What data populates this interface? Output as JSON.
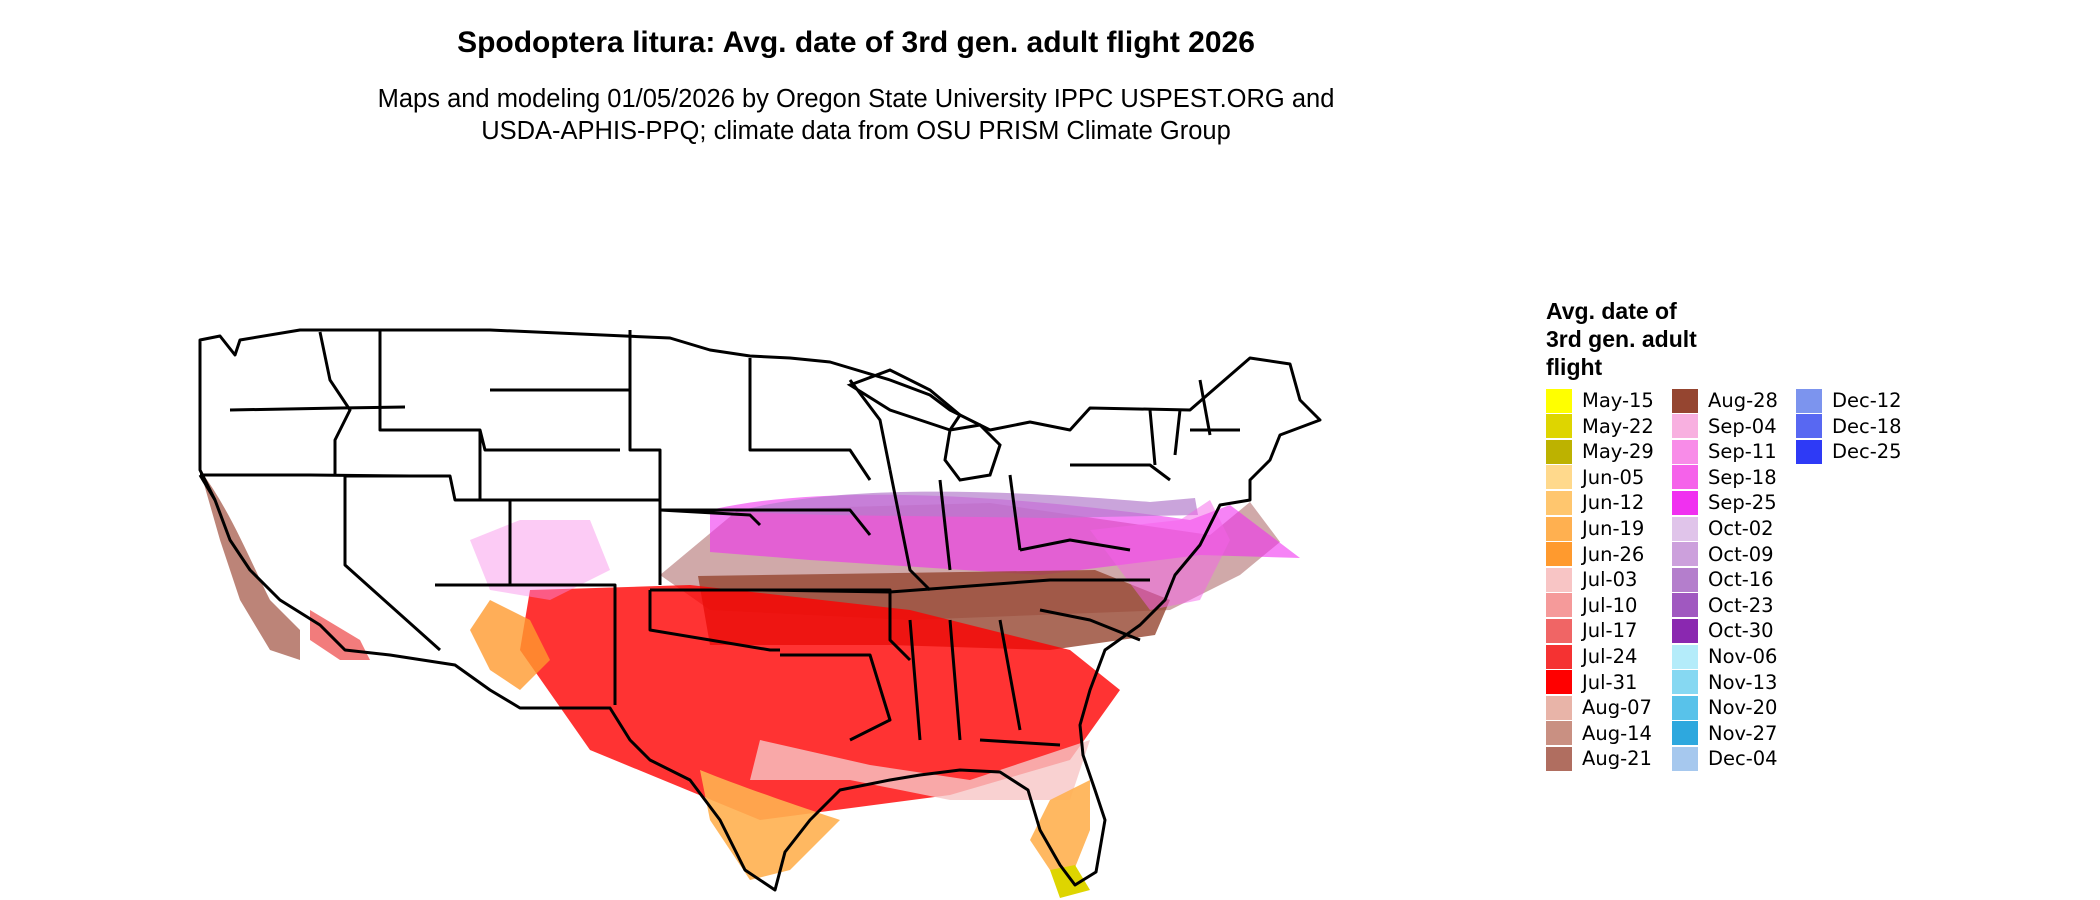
{
  "map": {
    "title": "Spodoptera litura: Avg. date of 3rd gen. adult flight 2026",
    "subtitle_line1": "Maps and modeling 01/05/2026 by Oregon State University IPPC USPEST.ORG and",
    "subtitle_line2": "USDA-APHIS-PPQ; climate data from OSU PRISM Climate Group",
    "legend_title_line1": "Avg. date of",
    "legend_title_line2": "3rd gen. adult",
    "legend_title_line3": "flight"
  },
  "legend": {
    "columns": [
      [
        {
          "label": "May-15",
          "color": "#FFFF00"
        },
        {
          "label": "May-22",
          "color": "#DED500"
        },
        {
          "label": "May-29",
          "color": "#BDB200"
        },
        {
          "label": "Jun-05",
          "color": "#FFD98C"
        },
        {
          "label": "Jun-12",
          "color": "#FFC66E"
        },
        {
          "label": "Jun-19",
          "color": "#FFB050"
        },
        {
          "label": "Jun-26",
          "color": "#FF9A2E"
        },
        {
          "label": "Jul-03",
          "color": "#F8C5C5"
        },
        {
          "label": "Jul-10",
          "color": "#F59A9A"
        },
        {
          "label": "Jul-17",
          "color": "#F06565"
        },
        {
          "label": "Jul-24",
          "color": "#F53232"
        },
        {
          "label": "Jul-31",
          "color": "#FF0000"
        },
        {
          "label": "Aug-07",
          "color": "#E8B4A8"
        },
        {
          "label": "Aug-14",
          "color": "#C99082"
        },
        {
          "label": "Aug-21",
          "color": "#B06E60"
        }
      ],
      [
        {
          "label": "Aug-28",
          "color": "#954530"
        },
        {
          "label": "Sep-04",
          "color": "#F8B0E0"
        },
        {
          "label": "Sep-11",
          "color": "#F88CE8"
        },
        {
          "label": "Sep-18",
          "color": "#F562EA"
        },
        {
          "label": "Sep-25",
          "color": "#F030F0"
        },
        {
          "label": "Oct-02",
          "color": "#E0C4EA"
        },
        {
          "label": "Oct-09",
          "color": "#CCA0DC"
        },
        {
          "label": "Oct-16",
          "color": "#B47ECC"
        },
        {
          "label": "Oct-23",
          "color": "#A058C0"
        },
        {
          "label": "Oct-30",
          "color": "#8A28B0"
        },
        {
          "label": "Nov-06",
          "color": "#B4ECFA"
        },
        {
          "label": "Nov-13",
          "color": "#86D8F2"
        },
        {
          "label": "Nov-20",
          "color": "#58C2EA"
        },
        {
          "label": "Nov-27",
          "color": "#2EA8DE"
        },
        {
          "label": "Dec-04",
          "color": "#A6C8EE"
        }
      ],
      [
        {
          "label": "Dec-12",
          "color": "#7C94EE"
        },
        {
          "label": "Dec-18",
          "color": "#5868F2"
        },
        {
          "label": "Dec-25",
          "color": "#2E3AF6"
        }
      ]
    ]
  }
}
